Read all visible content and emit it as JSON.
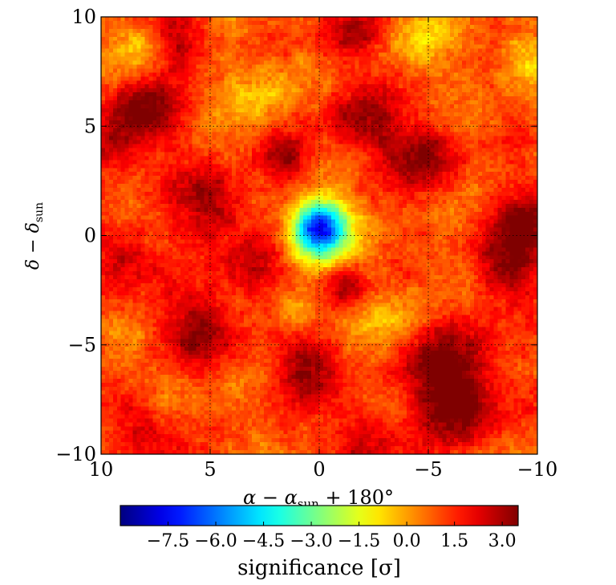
{
  "chart_data": {
    "type": "heatmap",
    "title": "",
    "xlabel": {
      "main": "α − α",
      "sub": "sun",
      "rest": " + 180°"
    },
    "ylabel": {
      "main": "δ − δ",
      "sub": "sun"
    },
    "x_range": [
      10,
      -10
    ],
    "y_range": [
      -10,
      10
    ],
    "x_ticks": [
      10,
      5,
      0,
      -5,
      -10
    ],
    "y_ticks": [
      -10,
      -5,
      0,
      5,
      10
    ],
    "x_tick_labels": [
      "10",
      "5",
      "0",
      "−5",
      "−10"
    ],
    "y_tick_labels": [
      "−10",
      "−5",
      "0",
      "5",
      "10"
    ],
    "grid": true,
    "grid_style": "dotted",
    "colormap": "jet",
    "value_range": [
      -9,
      3.5
    ],
    "colorbar": {
      "label": "significance [σ]",
      "ticks": [
        -7.5,
        -6.0,
        -4.5,
        -3.0,
        -1.5,
        0.0,
        1.5,
        3.0
      ],
      "tick_labels": [
        "−7.5",
        "−6.0",
        "−4.5",
        "−3.0",
        "−1.5",
        "0.0",
        "1.5",
        "3.0"
      ],
      "placement": "bottom"
    },
    "features": [
      {
        "type": "deficit",
        "x": 0,
        "y": 0.3,
        "sigma_deg": 0.9,
        "amplitude": -8.5
      },
      {
        "type": "hotspot",
        "x": 8,
        "y": 5.8,
        "sigma_deg": 1.2,
        "amplitude": 2.6
      },
      {
        "type": "hotspot",
        "x": 6.5,
        "y": 9.0,
        "sigma_deg": 1.0,
        "amplitude": 2.2
      },
      {
        "type": "hotspot",
        "x": -1.5,
        "y": 9.2,
        "sigma_deg": 1.0,
        "amplitude": 2.3
      },
      {
        "type": "hotspot",
        "x": -2.0,
        "y": 5.2,
        "sigma_deg": 1.2,
        "amplitude": 2.3
      },
      {
        "type": "hotspot",
        "x": -4.8,
        "y": 3.6,
        "sigma_deg": 1.1,
        "amplitude": 2.5
      },
      {
        "type": "hotspot",
        "x": 5.0,
        "y": 1.5,
        "sigma_deg": 1.2,
        "amplitude": 2.5
      },
      {
        "type": "hotspot",
        "x": 1.5,
        "y": 3.5,
        "sigma_deg": 0.8,
        "amplitude": 2.0
      },
      {
        "type": "hotspot",
        "x": -9.5,
        "y": 0.5,
        "sigma_deg": 1.2,
        "amplitude": 2.4
      },
      {
        "type": "hotspot",
        "x": 9.5,
        "y": 4.0,
        "sigma_deg": 0.9,
        "amplitude": 2.0
      },
      {
        "type": "hotspot",
        "x": 3.0,
        "y": -1.5,
        "sigma_deg": 1.0,
        "amplitude": 2.0
      },
      {
        "type": "hotspot",
        "x": -1.2,
        "y": -2.3,
        "sigma_deg": 0.7,
        "amplitude": 2.0
      },
      {
        "type": "hotspot",
        "x": -6.0,
        "y": -5.8,
        "sigma_deg": 1.4,
        "amplitude": 2.8
      },
      {
        "type": "hotspot",
        "x": -6.3,
        "y": -8.0,
        "sigma_deg": 1.2,
        "amplitude": 2.6
      },
      {
        "type": "hotspot",
        "x": 8.0,
        "y": -8.5,
        "sigma_deg": 1.2,
        "amplitude": 2.3
      },
      {
        "type": "hotspot",
        "x": 5.5,
        "y": -4.2,
        "sigma_deg": 1.3,
        "amplitude": 2.2
      },
      {
        "type": "hotspot",
        "x": 0.5,
        "y": -6.0,
        "sigma_deg": 1.2,
        "amplitude": 2.2
      },
      {
        "type": "hotspot",
        "x": -2.0,
        "y": -9.3,
        "sigma_deg": 1.0,
        "amplitude": 2.1
      },
      {
        "type": "hotspot",
        "x": -8.5,
        "y": -1.5,
        "sigma_deg": 1.0,
        "amplitude": 2.2
      },
      {
        "type": "hotspot",
        "x": 9.0,
        "y": -1.0,
        "sigma_deg": 1.0,
        "amplitude": 2.0
      },
      {
        "type": "coolspot",
        "x": 8.0,
        "y": 8.5,
        "sigma_deg": 1.1,
        "amplitude": -1.5
      },
      {
        "type": "coolspot",
        "x": -4.5,
        "y": 9.0,
        "sigma_deg": 1.1,
        "amplitude": -1.4
      },
      {
        "type": "coolspot",
        "x": -9.5,
        "y": 8.2,
        "sigma_deg": 1.0,
        "amplitude": -1.4
      },
      {
        "type": "coolspot",
        "x": 2.5,
        "y": 6.5,
        "sigma_deg": 1.2,
        "amplitude": -1.2
      },
      {
        "type": "coolspot",
        "x": 7.0,
        "y": -7.5,
        "sigma_deg": 1.1,
        "amplitude": -1.3
      },
      {
        "type": "coolspot",
        "x": 1.0,
        "y": -3.5,
        "sigma_deg": 0.8,
        "amplitude": -1.6
      },
      {
        "type": "coolspot",
        "x": -3.5,
        "y": -3.8,
        "sigma_deg": 1.0,
        "amplitude": -1.3
      }
    ]
  }
}
